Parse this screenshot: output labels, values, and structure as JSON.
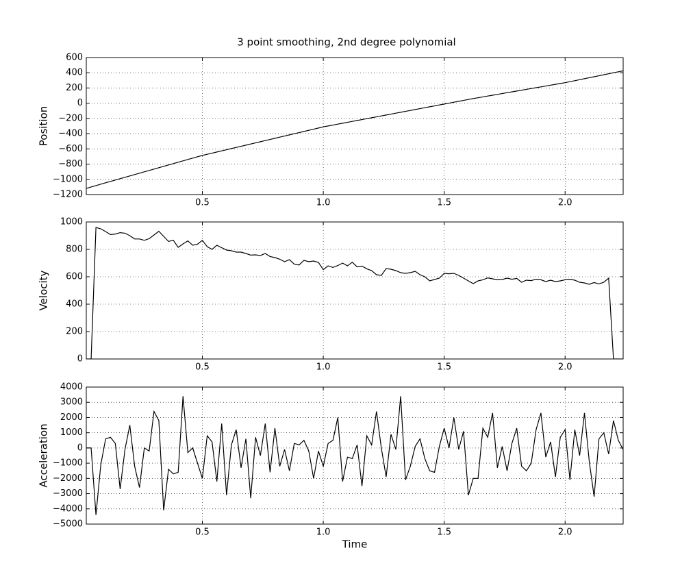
{
  "chart_data": [
    {
      "type": "line",
      "title": "3 point smoothing, 2nd degree polynomial",
      "ylabel": "Position",
      "color": "#000000",
      "grid": true,
      "x": [
        0.02,
        0.04,
        0.06,
        0.08,
        0.1,
        0.12,
        0.14,
        0.16,
        0.18,
        0.2,
        0.22,
        0.24,
        0.26,
        0.28,
        0.3,
        0.32,
        0.34,
        0.36,
        0.38,
        0.4,
        0.42,
        0.44,
        0.46,
        0.48,
        0.5,
        0.52,
        0.54,
        0.56,
        0.58,
        0.6,
        0.62,
        0.64,
        0.66,
        0.68,
        0.7,
        0.72,
        0.74,
        0.76,
        0.78,
        0.8,
        0.82,
        0.84,
        0.86,
        0.88,
        0.9,
        0.92,
        0.94,
        0.96,
        0.98,
        1.0,
        1.02,
        1.04,
        1.06,
        1.08,
        1.1,
        1.12,
        1.14,
        1.16,
        1.18,
        1.2,
        1.22,
        1.24,
        1.26,
        1.28,
        1.3,
        1.32,
        1.34,
        1.36,
        1.38,
        1.4,
        1.42,
        1.44,
        1.46,
        1.48,
        1.5,
        1.52,
        1.54,
        1.56,
        1.58,
        1.6,
        1.62,
        1.64,
        1.66,
        1.68,
        1.7,
        1.72,
        1.74,
        1.76,
        1.78,
        1.8,
        1.82,
        1.84,
        1.86,
        1.88,
        1.9,
        1.92,
        1.94,
        1.96,
        1.98,
        2.0,
        2.02,
        2.04,
        2.06,
        2.08,
        2.1,
        2.12,
        2.14,
        2.16,
        2.18,
        2.2,
        2.22,
        2.24
      ],
      "values": [
        -1120,
        -1100,
        -1082,
        -1063,
        -1045,
        -1027,
        -1009,
        -991,
        -973,
        -955,
        -937,
        -919,
        -901,
        -883,
        -865,
        -847,
        -829,
        -811,
        -793,
        -775,
        -757,
        -739,
        -721,
        -703,
        -686,
        -671,
        -656,
        -641,
        -626,
        -611,
        -596,
        -581,
        -566,
        -551,
        -536,
        -521,
        -506,
        -491,
        -476,
        -461,
        -446,
        -431,
        -416,
        -401,
        -386,
        -371,
        -356,
        -341,
        -326,
        -311,
        -299,
        -287,
        -275,
        -263,
        -251,
        -239,
        -227,
        -215,
        -203,
        -191,
        -179,
        -167,
        -155,
        -143,
        -131,
        -119,
        -107,
        -95,
        -83,
        -71,
        -59,
        -47,
        -35,
        -23,
        -11,
        1,
        13,
        25,
        37,
        49,
        61,
        72,
        83,
        94,
        105,
        116,
        127,
        138,
        149,
        160,
        171,
        182,
        193,
        204,
        215,
        226,
        237,
        248,
        259,
        270,
        283,
        296,
        309,
        322,
        335,
        348,
        361,
        374,
        387,
        400,
        413,
        426
      ],
      "xlim": [
        0.02,
        2.24
      ],
      "xticks": [
        0.5,
        {
          "value": 1.0,
          "label": "1.0"
        },
        1.5,
        {
          "value": 2.0,
          "label": "2.0"
        }
      ],
      "ylim": [
        -1200,
        600
      ],
      "yticks": [
        {
          "value": -1200,
          "label": "−1200"
        },
        {
          "value": -1000,
          "label": "−1000"
        },
        {
          "value": -800,
          "label": "−800"
        },
        {
          "value": -600,
          "label": "−600"
        },
        {
          "value": -400,
          "label": "−400"
        },
        {
          "value": -200,
          "label": "−200"
        },
        0,
        200,
        400,
        600
      ]
    },
    {
      "type": "line",
      "ylabel": "Velocity",
      "color": "#000000",
      "grid": true,
      "x": [
        0.02,
        0.04,
        0.06,
        0.08,
        0.1,
        0.12,
        0.14,
        0.16,
        0.18,
        0.2,
        0.22,
        0.24,
        0.26,
        0.28,
        0.3,
        0.32,
        0.34,
        0.36,
        0.38,
        0.4,
        0.42,
        0.44,
        0.46,
        0.48,
        0.5,
        0.52,
        0.54,
        0.56,
        0.58,
        0.6,
        0.62,
        0.64,
        0.66,
        0.68,
        0.7,
        0.72,
        0.74,
        0.76,
        0.78,
        0.8,
        0.82,
        0.84,
        0.86,
        0.88,
        0.9,
        0.92,
        0.94,
        0.96,
        0.98,
        1.0,
        1.02,
        1.04,
        1.06,
        1.08,
        1.1,
        1.12,
        1.14,
        1.16,
        1.18,
        1.2,
        1.22,
        1.24,
        1.26,
        1.28,
        1.3,
        1.32,
        1.34,
        1.36,
        1.38,
        1.4,
        1.42,
        1.44,
        1.46,
        1.48,
        1.5,
        1.52,
        1.54,
        1.56,
        1.58,
        1.6,
        1.62,
        1.64,
        1.66,
        1.68,
        1.7,
        1.72,
        1.74,
        1.76,
        1.78,
        1.8,
        1.82,
        1.84,
        1.86,
        1.88,
        1.9,
        1.92,
        1.94,
        1.96,
        1.98,
        2.0,
        2.02,
        2.04,
        2.06,
        2.08,
        2.1,
        2.12,
        2.14,
        2.16,
        2.18,
        2.2,
        2.22,
        2.24
      ],
      "values": [
        0,
        0,
        960,
        950,
        930,
        908,
        912,
        922,
        918,
        900,
        876,
        876,
        866,
        878,
        905,
        932,
        895,
        858,
        866,
        815,
        840,
        862,
        830,
        838,
        866,
        820,
        800,
        830,
        812,
        795,
        790,
        780,
        780,
        770,
        758,
        760,
        755,
        770,
        748,
        740,
        728,
        710,
        725,
        692,
        686,
        720,
        710,
        715,
        705,
        652,
        680,
        668,
        682,
        700,
        680,
        706,
        672,
        678,
        658,
        645,
        615,
        610,
        660,
        655,
        645,
        630,
        625,
        630,
        640,
        615,
        600,
        570,
        580,
        590,
        625,
        622,
        625,
        610,
        590,
        570,
        550,
        570,
        578,
        592,
        585,
        578,
        580,
        590,
        582,
        588,
        560,
        575,
        572,
        582,
        578,
        565,
        575,
        565,
        570,
        578,
        582,
        575,
        560,
        555,
        545,
        558,
        548,
        560,
        590,
        0,
        0,
        0
      ],
      "xlim": [
        0.02,
        2.24
      ],
      "xticks": [
        0.5,
        {
          "value": 1.0,
          "label": "1.0"
        },
        1.5,
        {
          "value": 2.0,
          "label": "2.0"
        }
      ],
      "ylim": [
        0,
        1000
      ],
      "yticks": [
        0,
        200,
        400,
        600,
        800,
        1000
      ]
    },
    {
      "type": "line",
      "ylabel": "Acceleration",
      "xlabel": "Time",
      "color": "#000000",
      "grid": true,
      "x": [
        0.02,
        0.04,
        0.06,
        0.08,
        0.1,
        0.12,
        0.14,
        0.16,
        0.18,
        0.2,
        0.22,
        0.24,
        0.26,
        0.28,
        0.3,
        0.32,
        0.34,
        0.36,
        0.38,
        0.4,
        0.42,
        0.44,
        0.46,
        0.48,
        0.5,
        0.52,
        0.54,
        0.56,
        0.58,
        0.6,
        0.62,
        0.64,
        0.66,
        0.68,
        0.7,
        0.72,
        0.74,
        0.76,
        0.78,
        0.8,
        0.82,
        0.84,
        0.86,
        0.88,
        0.9,
        0.92,
        0.94,
        0.96,
        0.98,
        1.0,
        1.02,
        1.04,
        1.06,
        1.08,
        1.1,
        1.12,
        1.14,
        1.16,
        1.18,
        1.2,
        1.22,
        1.24,
        1.26,
        1.28,
        1.3,
        1.32,
        1.34,
        1.36,
        1.38,
        1.4,
        1.42,
        1.44,
        1.46,
        1.48,
        1.5,
        1.52,
        1.54,
        1.56,
        1.58,
        1.6,
        1.62,
        1.64,
        1.66,
        1.68,
        1.7,
        1.72,
        1.74,
        1.76,
        1.78,
        1.8,
        1.82,
        1.84,
        1.86,
        1.88,
        1.9,
        1.92,
        1.94,
        1.96,
        1.98,
        2.0,
        2.02,
        2.04,
        2.06,
        2.08,
        2.1,
        2.12,
        2.14,
        2.16,
        2.18,
        2.2,
        2.22,
        2.24
      ],
      "values": [
        0,
        0,
        -4400,
        -1100,
        600,
        700,
        300,
        -2700,
        -100,
        1500,
        -1200,
        -2600,
        0,
        -200,
        2400,
        1800,
        -4100,
        -1400,
        -1700,
        -1600,
        3400,
        -300,
        0,
        -1000,
        -2000,
        800,
        400,
        -2200,
        1600,
        -3100,
        200,
        1200,
        -1300,
        600,
        -3300,
        700,
        -500,
        1600,
        -1600,
        1300,
        -1200,
        -100,
        -1500,
        300,
        200,
        500,
        -200,
        -2000,
        -200,
        -1200,
        300,
        500,
        2000,
        -2200,
        -600,
        -700,
        200,
        -2500,
        800,
        200,
        2400,
        0,
        -1900,
        900,
        -100,
        3400,
        -2100,
        -1200,
        100,
        600,
        -700,
        -1500,
        -1600,
        100,
        1300,
        0,
        2000,
        -100,
        1100,
        -3100,
        -2000,
        -2000,
        1300,
        700,
        2300,
        -1300,
        100,
        -1500,
        300,
        1300,
        -1200,
        -1500,
        -1000,
        1200,
        2300,
        -600,
        400,
        -1900,
        700,
        1200,
        -2100,
        1200,
        -500,
        2300,
        -900,
        -3200,
        600,
        1000,
        -400,
        1800,
        500,
        -100
      ],
      "xlim": [
        0.02,
        2.24
      ],
      "xticks": [
        0.5,
        {
          "value": 1.0,
          "label": "1.0"
        },
        1.5,
        {
          "value": 2.0,
          "label": "2.0"
        }
      ],
      "ylim": [
        -5000,
        4000
      ],
      "yticks": [
        {
          "value": -5000,
          "label": "−5000"
        },
        {
          "value": -4000,
          "label": "−4000"
        },
        {
          "value": -3000,
          "label": "−3000"
        },
        {
          "value": -2000,
          "label": "−2000"
        },
        {
          "value": -1000,
          "label": "−1000"
        },
        0,
        1000,
        2000,
        3000,
        4000
      ]
    }
  ]
}
